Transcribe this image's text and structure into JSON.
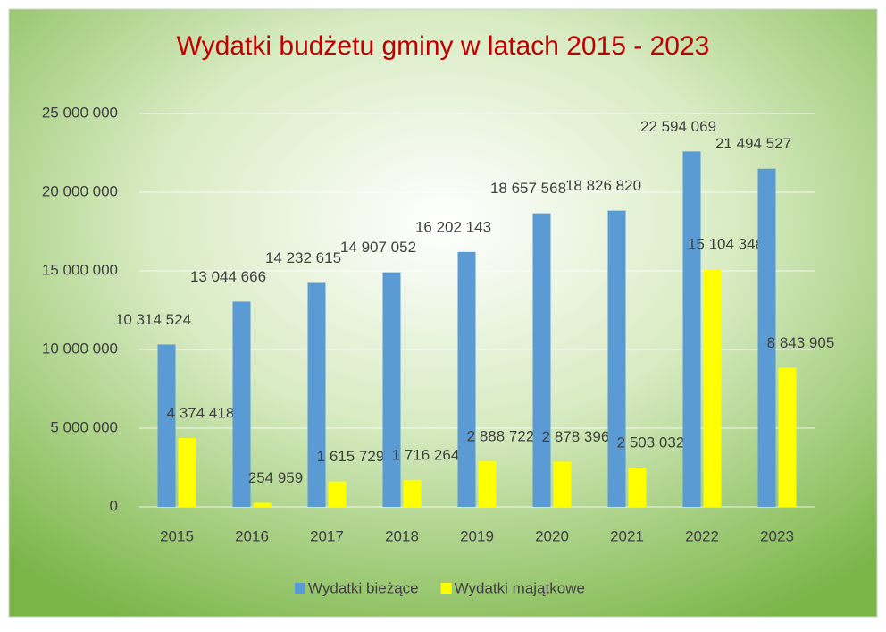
{
  "chart_data": {
    "type": "bar",
    "title": "Wydatki budżetu gminy w latach 2015 - 2023",
    "categories": [
      "2015",
      "2016",
      "2017",
      "2018",
      "2019",
      "2020",
      "2021",
      "2022",
      "2023"
    ],
    "series": [
      {
        "name": "Wydatki bieżące",
        "color": "#5b9bd5",
        "values": [
          10314524,
          13044666,
          14232615,
          14907052,
          16202143,
          18657568,
          18826820,
          22594069,
          21494527
        ],
        "value_labels": [
          "10 314 524",
          "13 044 666",
          "14 232 615",
          "14 907 052",
          "16 202 143",
          "18 657 568",
          "18 826 820",
          "22 594 069",
          "21 494 527"
        ]
      },
      {
        "name": "Wydatki majątkowe",
        "color": "#ffff00",
        "values": [
          4374418,
          254959,
          1615729,
          1716264,
          2888722,
          2878396,
          2503032,
          15104348,
          8843905
        ],
        "value_labels": [
          "4 374 418",
          "254 959",
          "1 615 729",
          "1 716 264",
          "2 888 722",
          "2 878 396",
          "2 503 032",
          "15 104 348",
          "8 843 905"
        ]
      }
    ],
    "ylim": [
      0,
      25000000
    ],
    "yticks": [
      0,
      {
        "value": 5000000,
        "label": "5 000 000"
      },
      {
        "value": 10000000,
        "label": "10 000 000"
      },
      {
        "value": 15000000,
        "label": "15 000 000"
      },
      {
        "value": 20000000,
        "label": "20 000 000"
      },
      {
        "value": 25000000,
        "label": "25 000 000"
      }
    ],
    "grid": true,
    "legend": "bottom"
  }
}
